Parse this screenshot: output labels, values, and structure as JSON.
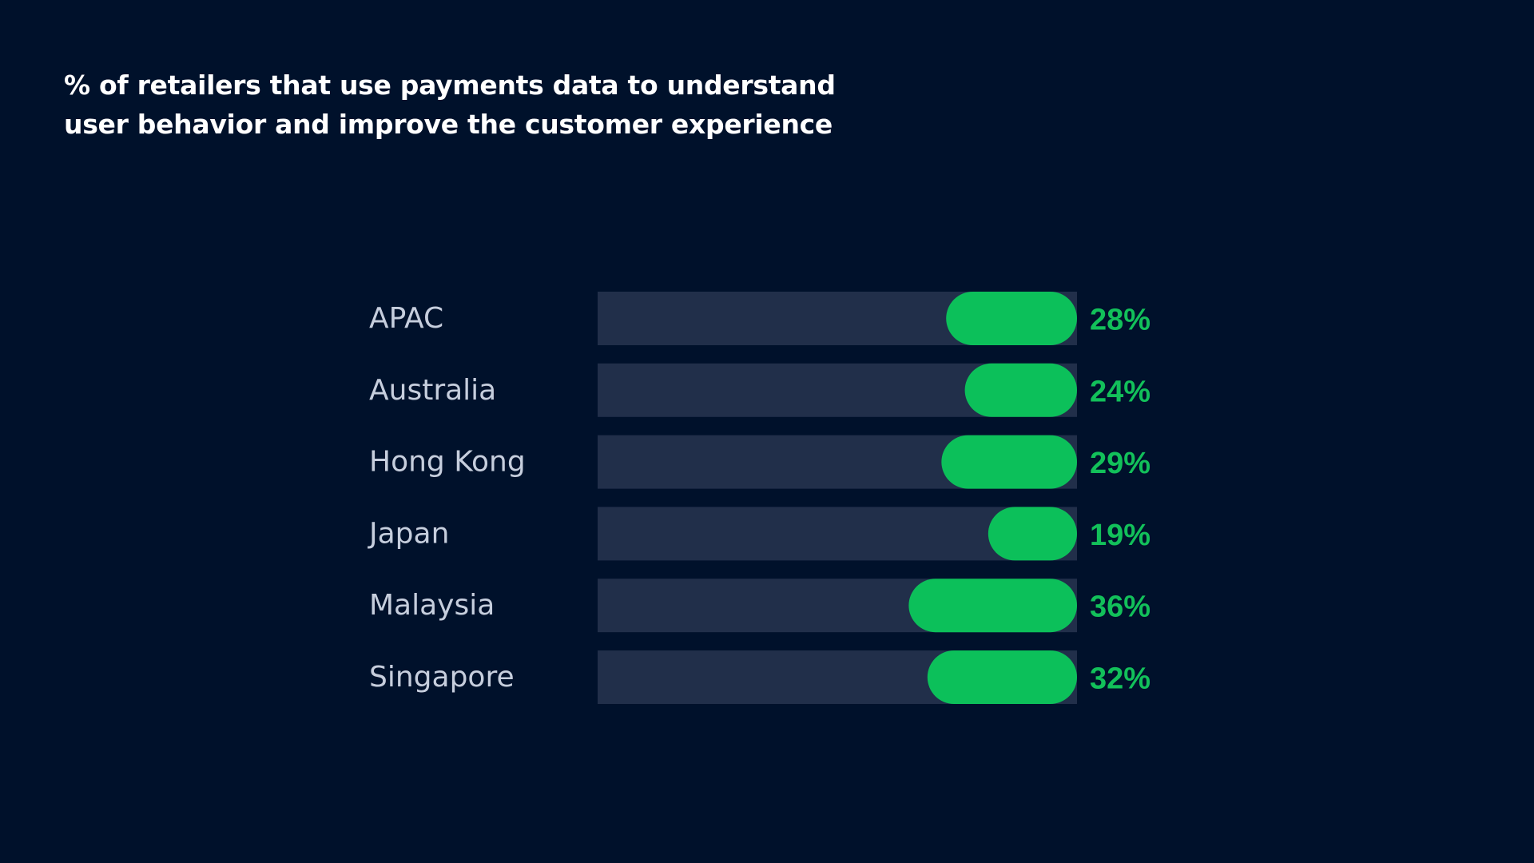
{
  "chart_data": {
    "type": "bar",
    "orientation": "horizontal",
    "title": "% of retailers that use payments data to understand\nuser behavior and improve the customer experience",
    "categories": [
      "APAC",
      "Australia",
      "Hong Kong",
      "Japan",
      "Malaysia",
      "Singapore"
    ],
    "values": [
      28,
      24,
      29,
      19,
      36,
      32
    ],
    "value_labels": [
      "28%",
      "24%",
      "29%",
      "19%",
      "36%",
      "32%"
    ],
    "value_unit": "%",
    "xlim": [
      0,
      100
    ],
    "grid": false,
    "legend": "none",
    "colors": {
      "background": "#00112b",
      "track": "#212f4a",
      "bar": "#0cc05a",
      "value_text": "#12c05a",
      "category_text": "#c6cedd",
      "title_text": "#ffffff"
    }
  }
}
